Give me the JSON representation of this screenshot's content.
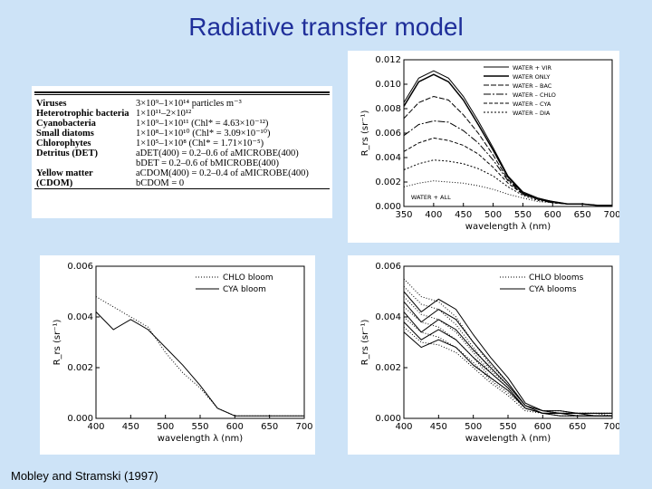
{
  "slide": {
    "title": "Radiative transfer model",
    "citation": "Mobley and Stramski (1997)"
  },
  "table": {
    "rows": [
      {
        "label": "Viruses",
        "value": "3×10⁹–1×10¹⁴ particles m⁻³"
      },
      {
        "label": "Heterotrophic bacteria",
        "value": "1×10¹¹–2×10¹²"
      },
      {
        "label": "Cyanobacteria",
        "value": "1×10⁹–1×10¹¹      (Chl* = 4.63×10⁻¹²)"
      },
      {
        "label": "Small diatoms",
        "value": "1×10⁸–1×10¹⁰      (Chl* = 3.09×10⁻¹⁰)"
      },
      {
        "label": "Chlorophytes",
        "value": "1×10⁵–1×10⁸      (Chl* = 1.71×10⁻⁵)"
      },
      {
        "label": "Detritus (DET)",
        "value": "aDET(400) = 0.2–0.6 of aMICROBE(400)"
      },
      {
        "label": "",
        "value": "bDET = 0.2–0.6 of bMICROBE(400)"
      },
      {
        "label": "Yellow matter",
        "value": "aCDOM(400) = 0.2–0.4 of aMICROBE(400)"
      },
      {
        "label": "(CDOM)",
        "value": "bCDOM = 0"
      }
    ]
  },
  "chart_data": [
    {
      "type": "line",
      "xlabel": "wavelength λ (nm)",
      "ylabel": "R_rs (sr⁻¹)",
      "xlim": [
        350,
        700
      ],
      "ylim": [
        0,
        0.012
      ],
      "xticks": [
        350,
        400,
        450,
        500,
        550,
        600,
        650,
        700
      ],
      "yticks": [
        0.0,
        0.002,
        0.004,
        0.006,
        0.008,
        0.01,
        0.012
      ],
      "ytick_labels": [
        "0.000",
        "0.002",
        "0.004",
        "0.006",
        "0.008",
        "0.010",
        "0.012"
      ],
      "legend": [
        "WATER + VIR",
        "WATER ONLY",
        "WATER – BAC",
        "WATER – CHLO",
        "WATER – CYA",
        "WATER – DIA"
      ],
      "annotations": [
        "WATER + ALL"
      ],
      "legend_position": "top-right",
      "x": [
        350,
        375,
        400,
        425,
        450,
        475,
        500,
        525,
        550,
        575,
        600,
        625,
        650,
        675,
        700
      ],
      "series": [
        {
          "name": "WATER + VIR",
          "values": [
            0.0085,
            0.0105,
            0.0111,
            0.0105,
            0.009,
            0.007,
            0.0048,
            0.0025,
            0.0012,
            0.0007,
            0.0004,
            0.0002,
            0.0002,
            0.0001,
            0.0001
          ]
        },
        {
          "name": "WATER ONLY",
          "values": [
            0.0082,
            0.0102,
            0.0108,
            0.0102,
            0.0087,
            0.0067,
            0.0046,
            0.0024,
            0.0011,
            0.0006,
            0.0004,
            0.0002,
            0.0002,
            0.0001,
            0.0001
          ]
        },
        {
          "name": "WATER – BAC",
          "values": [
            0.0072,
            0.0085,
            0.009,
            0.0087,
            0.0075,
            0.006,
            0.0042,
            0.0022,
            0.0011,
            0.0006,
            0.0004,
            0.0002,
            0.0002,
            0.0001,
            0.0001
          ]
        },
        {
          "name": "WATER – CHLO",
          "values": [
            0.0058,
            0.0067,
            0.007,
            0.0069,
            0.0062,
            0.0052,
            0.0038,
            0.0021,
            0.001,
            0.0006,
            0.0003,
            0.0002,
            0.0002,
            0.0001,
            0.0001
          ]
        },
        {
          "name": "WATER – CYA",
          "values": [
            0.0045,
            0.0052,
            0.0056,
            0.0054,
            0.005,
            0.0043,
            0.0032,
            0.0019,
            0.001,
            0.0006,
            0.0003,
            0.0002,
            0.0002,
            0.0001,
            0.0001
          ]
        },
        {
          "name": "WATER – DIA",
          "values": [
            0.003,
            0.0035,
            0.0038,
            0.0037,
            0.0035,
            0.0031,
            0.0025,
            0.0016,
            0.0009,
            0.0005,
            0.0003,
            0.0002,
            0.0002,
            0.0001,
            0.0001
          ]
        },
        {
          "name": "WATER + ALL",
          "values": [
            0.0016,
            0.0019,
            0.0021,
            0.002,
            0.0019,
            0.0017,
            0.0014,
            0.001,
            0.0007,
            0.0004,
            0.0003,
            0.0002,
            0.0002,
            0.0001,
            0.0001
          ]
        }
      ]
    },
    {
      "type": "line",
      "xlabel": "wavelength λ (nm)",
      "ylabel": "R_rs (sr⁻¹)",
      "xlim": [
        400,
        700
      ],
      "ylim": [
        0,
        0.006
      ],
      "xticks": [
        400,
        450,
        500,
        550,
        600,
        650,
        700
      ],
      "yticks": [
        0.0,
        0.002,
        0.004,
        0.006
      ],
      "ytick_labels": [
        "0.000",
        "0.002",
        "0.004",
        "0.006"
      ],
      "legend": [
        "CHLO bloom",
        "CYA bloom"
      ],
      "legend_position": "top-right",
      "x": [
        400,
        425,
        450,
        475,
        500,
        525,
        550,
        575,
        600,
        625,
        650,
        675,
        700
      ],
      "series": [
        {
          "name": "CHLO bloom",
          "values": [
            0.0048,
            0.0044,
            0.004,
            0.0036,
            0.0026,
            0.0018,
            0.0012,
            0.0004,
            0.0001,
            0.0001,
            0.0001,
            0.0001,
            0.0001
          ]
        },
        {
          "name": "CYA bloom",
          "values": [
            0.0042,
            0.0035,
            0.0039,
            0.0035,
            0.0028,
            0.0021,
            0.0013,
            0.0004,
            0.0001,
            0.0001,
            0.0001,
            0.0001,
            0.0001
          ]
        }
      ]
    },
    {
      "type": "line",
      "xlabel": "wavelength λ (nm)",
      "ylabel": "R_rs (sr⁻¹)",
      "xlim": [
        400,
        700
      ],
      "ylim": [
        0,
        0.006
      ],
      "xticks": [
        400,
        450,
        500,
        550,
        600,
        650,
        700
      ],
      "yticks": [
        0.0,
        0.002,
        0.004,
        0.006
      ],
      "ytick_labels": [
        "0.000",
        "0.002",
        "0.004",
        "0.006"
      ],
      "legend": [
        "CHLO blooms",
        "CYA blooms"
      ],
      "legend_position": "top-right",
      "x": [
        400,
        425,
        450,
        475,
        500,
        525,
        550,
        575,
        600,
        625,
        650,
        675,
        700
      ],
      "series": [
        {
          "name": "CHLO blooms",
          "values": [
            0.0055,
            0.0048,
            0.0046,
            0.004,
            0.003,
            0.0021,
            0.0014,
            0.0005,
            0.0003,
            0.0003,
            0.0002,
            0.0002,
            0.0002
          ]
        },
        {
          "name": "CHLO blooms",
          "values": [
            0.0052,
            0.0045,
            0.0043,
            0.0037,
            0.0028,
            0.0019,
            0.0013,
            0.0005,
            0.0003,
            0.0002,
            0.0002,
            0.0002,
            0.0002
          ]
        },
        {
          "name": "CHLO blooms",
          "values": [
            0.0048,
            0.0041,
            0.0039,
            0.0034,
            0.0026,
            0.0018,
            0.0012,
            0.0004,
            0.0002,
            0.0002,
            0.0002,
            0.0002,
            0.0001
          ]
        },
        {
          "name": "CHLO blooms",
          "values": [
            0.0044,
            0.0038,
            0.0036,
            0.0031,
            0.0024,
            0.0016,
            0.0011,
            0.0004,
            0.0002,
            0.0002,
            0.0002,
            0.0001,
            0.0001
          ]
        },
        {
          "name": "CHLO blooms",
          "values": [
            0.004,
            0.0034,
            0.0032,
            0.0028,
            0.0022,
            0.0015,
            0.001,
            0.0004,
            0.0002,
            0.0002,
            0.0001,
            0.0001,
            0.0001
          ]
        },
        {
          "name": "CHLO blooms",
          "values": [
            0.0036,
            0.003,
            0.0029,
            0.0026,
            0.002,
            0.0014,
            0.0009,
            0.0003,
            0.0002,
            0.0001,
            0.0001,
            0.0001,
            0.0001
          ]
        },
        {
          "name": "CYA blooms",
          "values": [
            0.005,
            0.0042,
            0.0047,
            0.0043,
            0.0033,
            0.0024,
            0.0016,
            0.0006,
            0.0003,
            0.0003,
            0.0002,
            0.0002,
            0.0002
          ]
        },
        {
          "name": "CYA blooms",
          "values": [
            0.0046,
            0.0038,
            0.0043,
            0.0039,
            0.003,
            0.0022,
            0.0014,
            0.0005,
            0.0003,
            0.0002,
            0.0002,
            0.0002,
            0.0002
          ]
        },
        {
          "name": "CYA blooms",
          "values": [
            0.0042,
            0.0034,
            0.0039,
            0.0035,
            0.0027,
            0.002,
            0.0013,
            0.0005,
            0.0002,
            0.0002,
            0.0002,
            0.0001,
            0.0001
          ]
        },
        {
          "name": "CYA blooms",
          "values": [
            0.0038,
            0.0031,
            0.0035,
            0.0031,
            0.0024,
            0.0018,
            0.0012,
            0.0004,
            0.0002,
            0.0002,
            0.0001,
            0.0001,
            0.0001
          ]
        },
        {
          "name": "CYA blooms",
          "values": [
            0.0034,
            0.0028,
            0.0031,
            0.0028,
            0.0021,
            0.0016,
            0.0011,
            0.0004,
            0.0002,
            0.0001,
            0.0001,
            0.0001,
            0.0001
          ]
        }
      ]
    }
  ]
}
